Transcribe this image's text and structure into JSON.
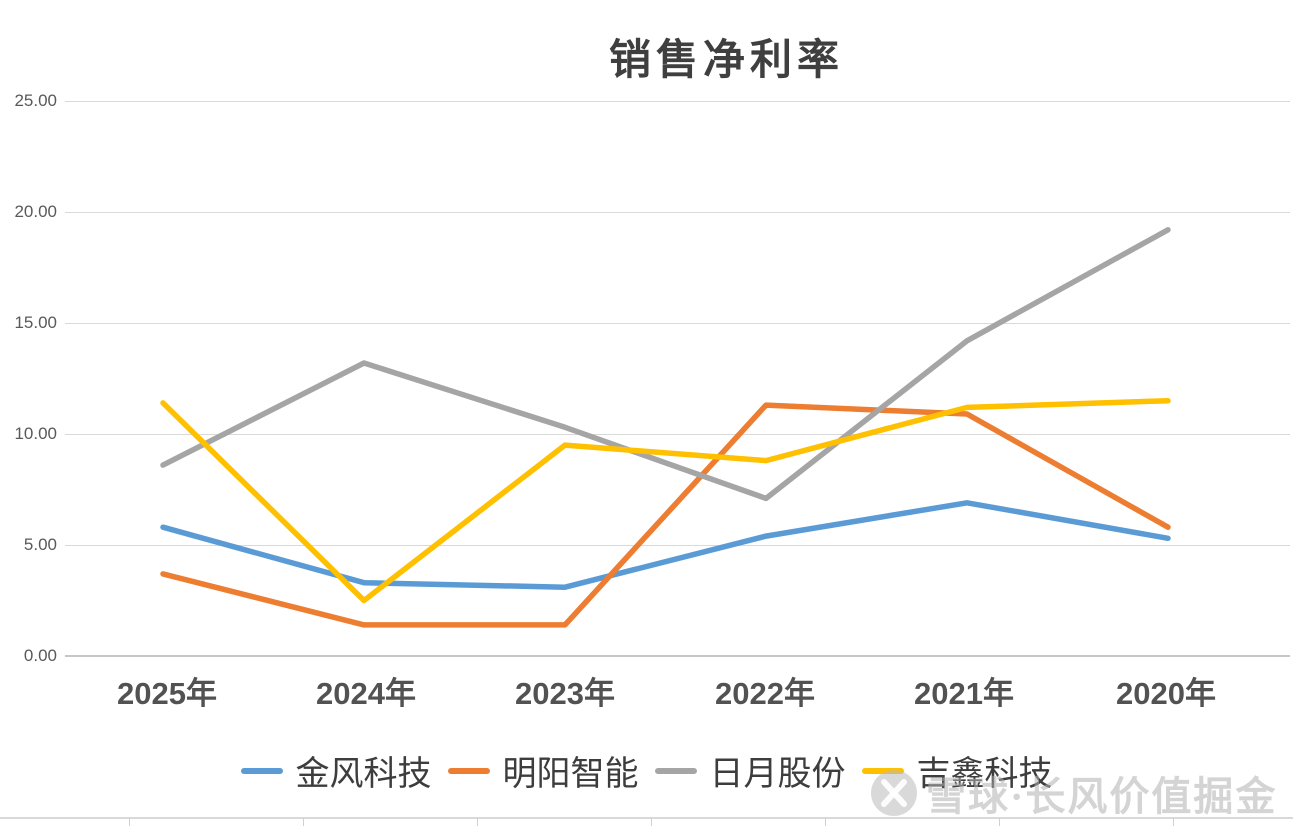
{
  "title": "销售净利率",
  "chart_data": {
    "type": "line",
    "title": "销售净利率",
    "categories": [
      "2025年",
      "2024年",
      "2023年",
      "2022年",
      "2021年",
      "2020年"
    ],
    "series": [
      {
        "name": "金风科技",
        "color": "#5B9BD5",
        "values": [
          5.8,
          3.3,
          3.1,
          5.4,
          6.9,
          5.3
        ]
      },
      {
        "name": "明阳智能",
        "color": "#ED7D31",
        "values": [
          3.7,
          1.4,
          1.4,
          11.3,
          10.9,
          5.8
        ]
      },
      {
        "name": "日月股份",
        "color": "#A5A5A5",
        "values": [
          8.6,
          13.2,
          10.3,
          7.1,
          14.2,
          19.2
        ]
      },
      {
        "name": "吉鑫科技",
        "color": "#FFC000",
        "values": [
          11.4,
          2.5,
          9.5,
          8.8,
          11.2,
          11.5
        ]
      }
    ],
    "ylabel": "",
    "xlabel": "",
    "ylim": [
      0,
      25
    ],
    "yticks": [
      "25.00",
      "20.00",
      "15.00",
      "10.00",
      "5.00",
      "0.00"
    ],
    "grid": "horizontal",
    "legend_position": "bottom"
  },
  "watermark": {
    "logo": "xueqiu-logo",
    "text": "雪球·长风价值掘金"
  },
  "colors": {
    "gridline": "#d9d9d9",
    "axis_text": "#595959",
    "title_text": "#3f3f3f"
  }
}
